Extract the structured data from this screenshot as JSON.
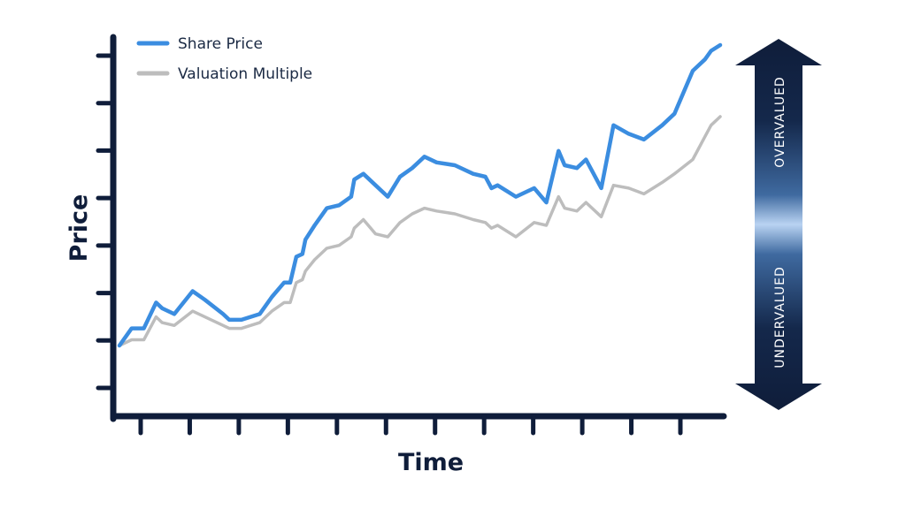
{
  "chart_data": {
    "type": "line",
    "xlabel": "Time",
    "ylabel": "Price",
    "x_ticks": 12,
    "y_ticks": 8,
    "x": [
      0,
      2,
      4,
      6,
      7,
      9,
      12,
      14,
      17,
      18,
      20,
      23,
      25,
      27,
      28,
      29,
      30,
      30.5,
      32,
      34,
      36,
      38,
      38.5,
      40,
      42,
      44,
      46,
      48,
      50,
      52,
      55,
      58,
      60,
      61,
      62,
      65,
      68,
      70,
      72,
      73,
      75,
      76.5,
      79,
      81,
      83.5,
      86,
      89,
      91,
      94,
      96,
      97,
      98.5
    ],
    "series": [
      {
        "name": "Share Price",
        "color": "#3b8de0",
        "values": [
          0.0,
          0.06,
          0.06,
          0.15,
          0.13,
          0.11,
          0.19,
          0.16,
          0.11,
          0.09,
          0.09,
          0.11,
          0.17,
          0.22,
          0.22,
          0.31,
          0.32,
          0.37,
          0.42,
          0.48,
          0.49,
          0.52,
          0.58,
          0.6,
          0.56,
          0.52,
          0.59,
          0.62,
          0.66,
          0.64,
          0.63,
          0.6,
          0.59,
          0.55,
          0.56,
          0.52,
          0.55,
          0.5,
          0.68,
          0.63,
          0.62,
          0.65,
          0.55,
          0.77,
          0.74,
          0.72,
          0.77,
          0.81,
          0.96,
          1.0,
          1.03,
          1.05
        ]
      },
      {
        "name": "Valuation Multiple",
        "color": "#bdbdbd",
        "values": [
          0.0,
          0.02,
          0.02,
          0.1,
          0.08,
          0.07,
          0.12,
          0.1,
          0.07,
          0.06,
          0.06,
          0.08,
          0.12,
          0.15,
          0.15,
          0.22,
          0.23,
          0.26,
          0.3,
          0.34,
          0.35,
          0.38,
          0.41,
          0.44,
          0.39,
          0.38,
          0.43,
          0.46,
          0.48,
          0.47,
          0.46,
          0.44,
          0.43,
          0.41,
          0.42,
          0.38,
          0.43,
          0.42,
          0.52,
          0.48,
          0.47,
          0.5,
          0.45,
          0.56,
          0.55,
          0.53,
          0.57,
          0.6,
          0.65,
          0.73,
          0.77,
          0.8
        ]
      }
    ],
    "legend": {
      "placement": "top-left",
      "entries": [
        "Share Price",
        "Valuation Multiple"
      ]
    },
    "grid": false,
    "indicator": {
      "top_label": "OVERVALUED",
      "bottom_label": "UNDERVALUED",
      "dark_color": "#0f1d3a",
      "light_color": "#b9d3f2"
    }
  }
}
